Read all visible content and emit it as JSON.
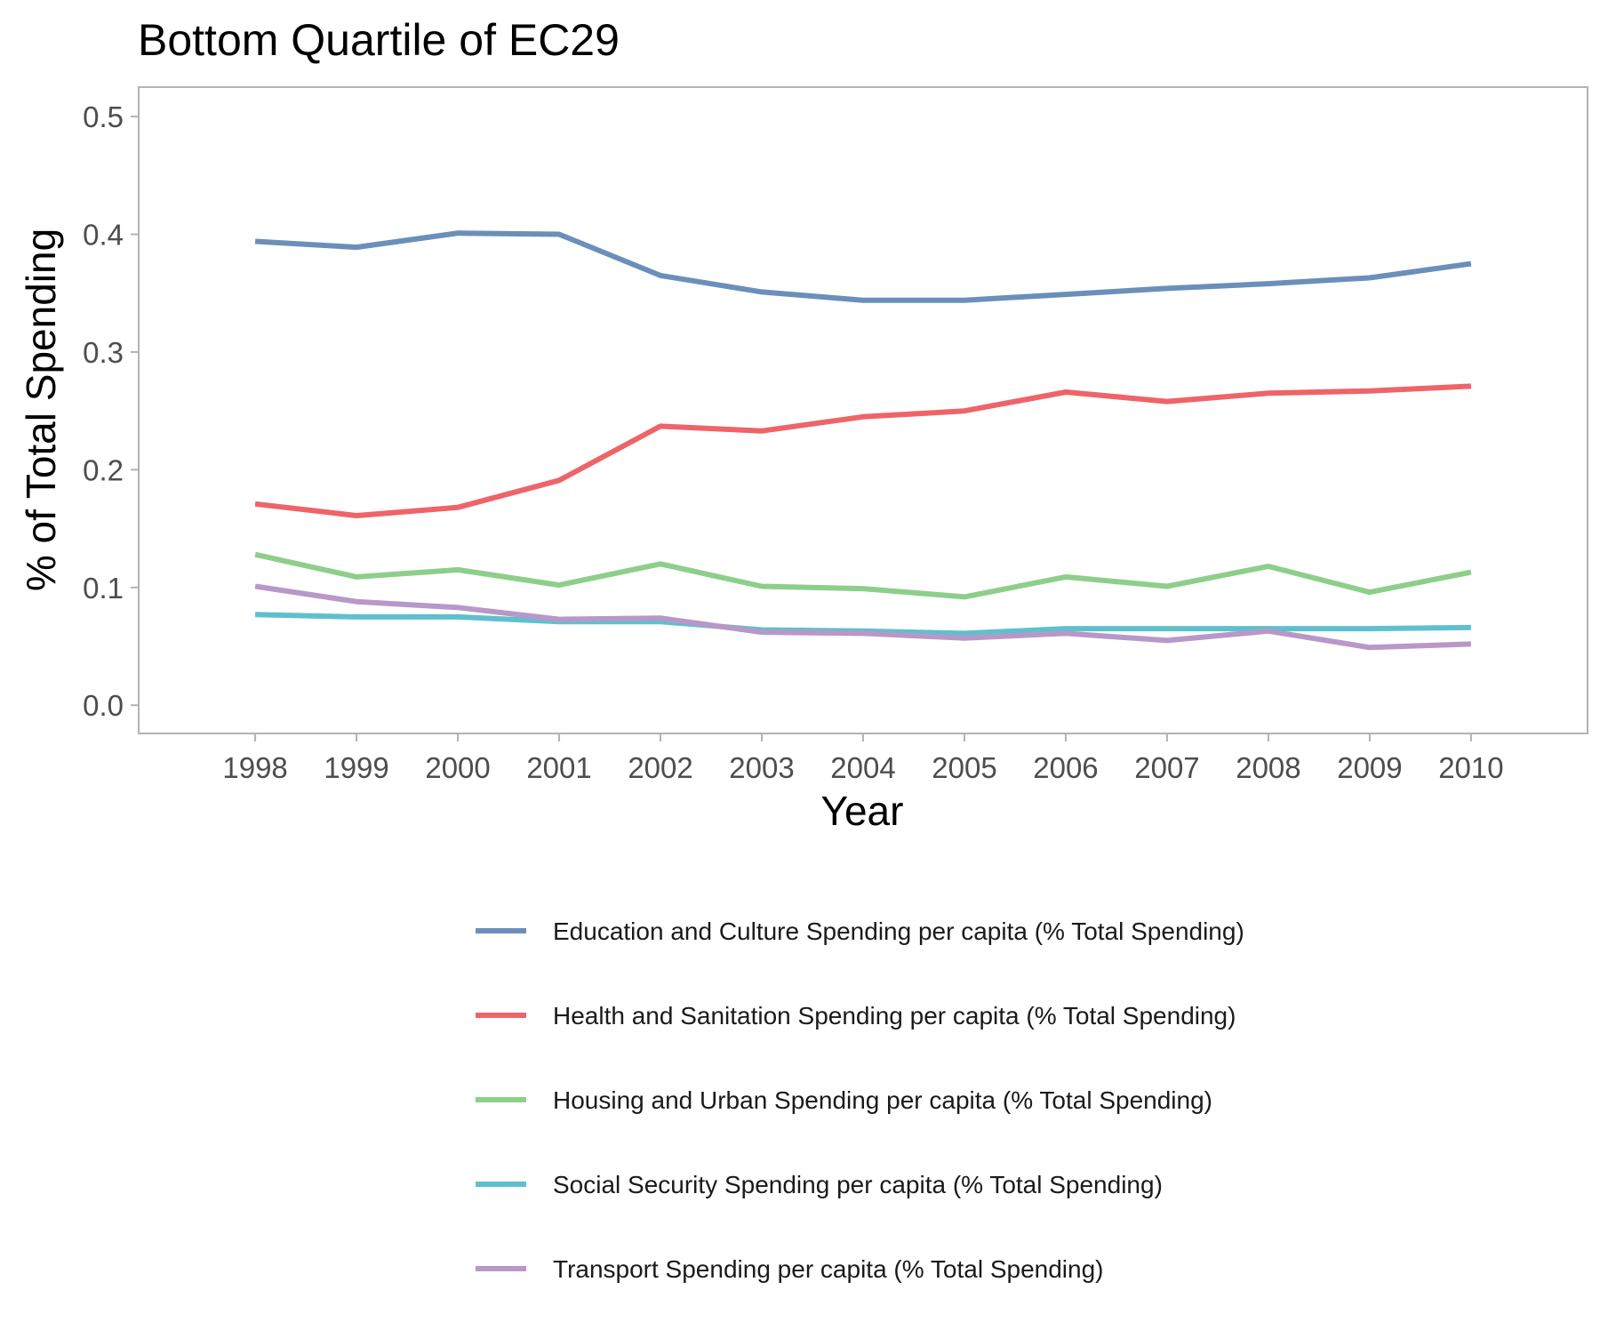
{
  "chart_data": {
    "type": "line",
    "title": "Bottom Quartile of EC29",
    "xlabel": "Year",
    "ylabel": "% of Total Spending",
    "x": [
      1998,
      1999,
      2000,
      2001,
      2002,
      2003,
      2004,
      2005,
      2006,
      2007,
      2008,
      2009,
      2010
    ],
    "xlim": [
      1996.85,
      2011.15
    ],
    "ylim": [
      -0.024,
      0.525
    ],
    "yticks": [
      0.0,
      0.1,
      0.2,
      0.3,
      0.4,
      0.5
    ],
    "ytick_labels": [
      "0.0",
      "0.1",
      "0.2",
      "0.3",
      "0.4",
      "0.5"
    ],
    "grid": false,
    "legend_position": "bottom",
    "series": [
      {
        "name": "Education and Culture Spending per capita (% Total Spending)",
        "color": "#6b8fba",
        "values": [
          0.394,
          0.389,
          0.401,
          0.4,
          0.365,
          0.351,
          0.344,
          0.344,
          0.349,
          0.354,
          0.358,
          0.363,
          0.375
        ]
      },
      {
        "name": "Health and Sanitation Spending per capita (% Total Spending)",
        "color": "#ee6468",
        "values": [
          0.171,
          0.161,
          0.168,
          0.191,
          0.237,
          0.233,
          0.245,
          0.25,
          0.266,
          0.258,
          0.265,
          0.267,
          0.271
        ]
      },
      {
        "name": "Housing and Urban Spending per capita (% Total Spending)",
        "color": "#8dcf8a",
        "values": [
          0.128,
          0.109,
          0.115,
          0.102,
          0.12,
          0.101,
          0.099,
          0.092,
          0.109,
          0.101,
          0.118,
          0.096,
          0.113
        ]
      },
      {
        "name": "Social Security Spending per capita (% Total Spending)",
        "color": "#5fc0cd",
        "values": [
          0.077,
          0.075,
          0.075,
          0.071,
          0.071,
          0.064,
          0.063,
          0.061,
          0.065,
          0.065,
          0.065,
          0.065,
          0.066
        ]
      },
      {
        "name": "Transport Spending per capita (% Total Spending)",
        "color": "#b898c8",
        "values": [
          0.101,
          0.088,
          0.083,
          0.073,
          0.074,
          0.062,
          0.061,
          0.057,
          0.061,
          0.055,
          0.063,
          0.049,
          0.052
        ]
      }
    ]
  }
}
